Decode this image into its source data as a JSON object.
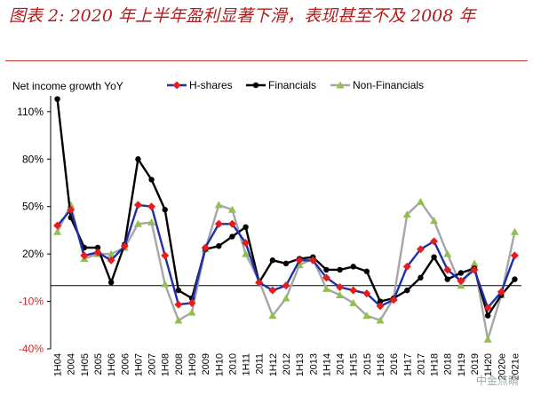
{
  "header": {
    "title": "图表 2: 2020 年上半年盈利显著下滑，表现甚至不及 2008 年"
  },
  "watermark": "中金点睛",
  "chart_data": {
    "type": "line",
    "ylabel": "Net income growth YoY",
    "ylim": [
      -40,
      120
    ],
    "yticks": [
      "110%",
      "80%",
      "50%",
      "20%",
      "-10%",
      "-40%"
    ],
    "ytick_values": [
      110,
      80,
      50,
      20,
      -10,
      -40
    ],
    "categories": [
      "1H04",
      "2004",
      "1H05",
      "2005",
      "1H06",
      "2006",
      "1H07",
      "2007",
      "1H08",
      "2008",
      "1H09",
      "2009",
      "1H10",
      "2010",
      "1H11",
      "2011",
      "1H12",
      "2012",
      "1H13",
      "2013",
      "1H14",
      "2014",
      "1H15",
      "2015",
      "1H16",
      "2016",
      "1H17",
      "2017",
      "1H18",
      "2018",
      "1H19",
      "2019",
      "1H20",
      "2020e",
      "2021e"
    ],
    "legend_position": "top",
    "series": [
      {
        "name": "H-shares",
        "color": "#1f2fa8",
        "marker": "diamond",
        "marker_color": "#e81c1c",
        "values": [
          38,
          48,
          19,
          21,
          16,
          25,
          51,
          50,
          19,
          -12,
          -11,
          24,
          39,
          39,
          27,
          2,
          -3,
          0,
          16,
          16,
          5,
          -1,
          -3,
          -5,
          -13,
          -9,
          12,
          23,
          28,
          10,
          3,
          10,
          -14,
          -4,
          19
        ]
      },
      {
        "name": "Financials",
        "color": "#000000",
        "marker": "circle",
        "marker_color": "#000000",
        "values": [
          118,
          43,
          24,
          24,
          2,
          26,
          80,
          67,
          48,
          -3,
          -8,
          23,
          25,
          31,
          37,
          2,
          16,
          14,
          17,
          18,
          10,
          10,
          12,
          9,
          -10,
          -8,
          -3,
          5,
          18,
          4,
          8,
          11,
          -19,
          -6,
          4
        ]
      },
      {
        "name": "Non-Financials",
        "color": "#a6a6a6",
        "marker": "triangle",
        "marker_color": "#92c050",
        "values": [
          34,
          51,
          17,
          20,
          20,
          24,
          39,
          40,
          1,
          -22,
          -17,
          23,
          51,
          48,
          20,
          3,
          -19,
          -8,
          13,
          17,
          -2,
          -6,
          -11,
          -19,
          -22,
          -8,
          45,
          53,
          41,
          20,
          0,
          14,
          -34,
          -6,
          34
        ]
      }
    ]
  }
}
